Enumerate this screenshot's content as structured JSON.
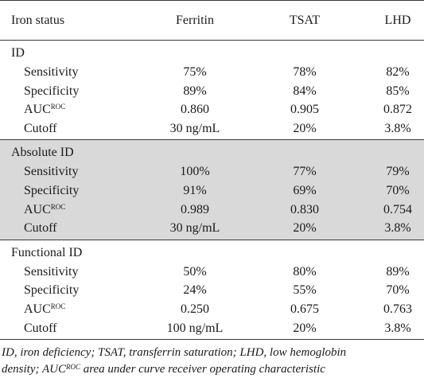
{
  "header": {
    "col0": "Iron status",
    "col1": "Ferritin",
    "col2": "TSAT",
    "col3": "LHD"
  },
  "groups": [
    {
      "title": "ID",
      "rows": [
        {
          "label": "Sensitivity",
          "sup": "",
          "v1": "75%",
          "v2": "78%",
          "v3": "82%"
        },
        {
          "label": "Specificity",
          "sup": "",
          "v1": "89%",
          "v2": "84%",
          "v3": "85%"
        },
        {
          "label": "AUC",
          "sup": "ROC",
          "v1": "0.860",
          "v2": "0.905",
          "v3": "0.872"
        },
        {
          "label": "Cutoff",
          "sup": "",
          "v1": "30 ng/mL",
          "v2": "20%",
          "v3": "3.8%"
        }
      ]
    },
    {
      "title": "Absolute ID",
      "rows": [
        {
          "label": "Sensitivity",
          "sup": "",
          "v1": "100%",
          "v2": "77%",
          "v3": "79%"
        },
        {
          "label": "Specificity",
          "sup": "",
          "v1": "91%",
          "v2": "69%",
          "v3": "70%"
        },
        {
          "label": "AUC",
          "sup": "ROC",
          "v1": "0.989",
          "v2": "0.830",
          "v3": "0.754"
        },
        {
          "label": "Cutoff",
          "sup": "",
          "v1": "30 ng/mL",
          "v2": "20%",
          "v3": "3.8%"
        }
      ]
    },
    {
      "title": "Functional ID",
      "rows": [
        {
          "label": "Sensitivity",
          "sup": "",
          "v1": "50%",
          "v2": "80%",
          "v3": "89%"
        },
        {
          "label": "Specificity",
          "sup": "",
          "v1": "24%",
          "v2": "55%",
          "v3": "70%"
        },
        {
          "label": "AUC",
          "sup": "ROC",
          "v1": "0.250",
          "v2": "0.675",
          "v3": "0.763"
        },
        {
          "label": "Cutoff",
          "sup": "",
          "v1": "100 ng/mL",
          "v2": "20%",
          "v3": "3.8%"
        }
      ]
    }
  ],
  "footnote": {
    "line1": "ID, iron deficiency; TSAT, transferrin saturation; LHD, low hemoglobin",
    "line2_pre": "density; AUC",
    "line2_sup": "ROC",
    "line2_post": " area under curve receiver operating characteristic"
  },
  "colors": {
    "band": "#d9d9d9",
    "rule": "#3a3a3a",
    "text": "#1a1a1a"
  }
}
